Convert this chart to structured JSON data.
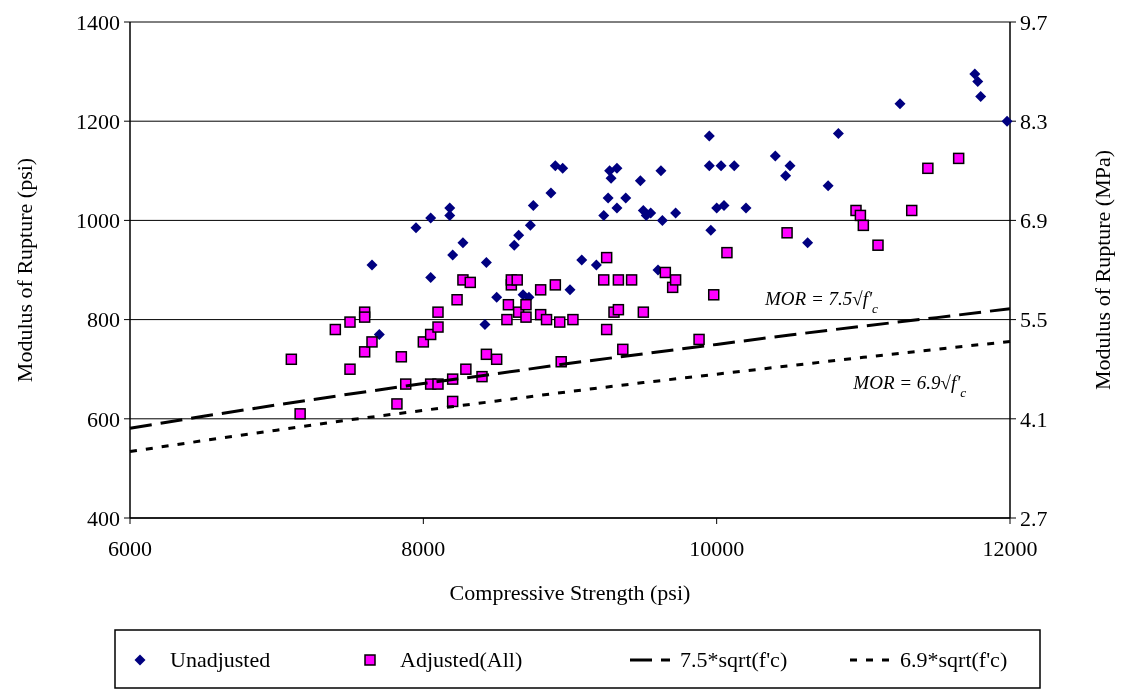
{
  "chart_data": {
    "type": "scatter",
    "xlabel": "Compressive Strength (psi)",
    "ylabel": "Modulus of Rupture (psi)",
    "y2label": "Modulus of Rupture (MPa)",
    "xlim": [
      6000,
      12000
    ],
    "xticks": [
      6000,
      8000,
      10000,
      12000
    ],
    "ylim": [
      400,
      1400
    ],
    "yticks": [
      400,
      600,
      800,
      1000,
      1200,
      1400
    ],
    "y2lim": [
      2.7,
      9.7
    ],
    "y2ticks": [
      2.7,
      4.1,
      5.5,
      6.9,
      8.3,
      9.7
    ],
    "grid": "y",
    "legend": "bottom",
    "annotations": [
      {
        "text": "MOR = 7.5√f'$_{c}$",
        "x": 10500,
        "y": 769
      },
      {
        "text": "MOR = 6.9√f'$_{c}$",
        "x": 11000,
        "y": 724
      }
    ],
    "series": [
      {
        "name": "Unadjusted",
        "marker": "diamond",
        "color": "#000080",
        "x": [
          7650,
          7700,
          7950,
          8050,
          8050,
          8180,
          8180,
          8200,
          8270,
          8420,
          8430,
          8500,
          8620,
          8650,
          8680,
          8720,
          8730,
          8750,
          8870,
          8900,
          8950,
          9000,
          9080,
          9180,
          9230,
          9260,
          9270,
          9280,
          9320,
          9320,
          9380,
          9480,
          9500,
          9520,
          9550,
          9620,
          9630,
          9600,
          9720,
          9950,
          9950,
          9960,
          10000,
          10030,
          10050,
          10120,
          10200,
          10400,
          10470,
          10500,
          10620,
          10760,
          10830,
          11250,
          11760,
          11780,
          11800,
          11980
        ],
        "values": [
          910,
          770,
          985,
          1005,
          885,
          1025,
          1010,
          930,
          955,
          790,
          915,
          845,
          950,
          970,
          850,
          845,
          990,
          1030,
          1055,
          1110,
          1105,
          860,
          920,
          910,
          1010,
          1045,
          1100,
          1085,
          1105,
          1025,
          1045,
          1080,
          1020,
          1010,
          1015,
          1100,
          1000,
          900,
          1015,
          1110,
          1170,
          980,
          1025,
          1110,
          1030,
          1110,
          1025,
          1130,
          1090,
          1110,
          955,
          1070,
          1175,
          1235,
          1295,
          1280,
          1250,
          1200
        ]
      },
      {
        "name": "Adjusted(All)",
        "marker": "square",
        "color": "#ff00ff",
        "x": [
          7100,
          7160,
          7400,
          7500,
          7500,
          7600,
          7600,
          7600,
          7650,
          7820,
          7850,
          7880,
          8000,
          8050,
          8050,
          8100,
          8100,
          8100,
          8200,
          8200,
          8230,
          8270,
          8290,
          8320,
          8400,
          8430,
          8500,
          8570,
          8580,
          8600,
          8600,
          8640,
          8650,
          8700,
          8700,
          8800,
          8800,
          8840,
          8900,
          8930,
          8940,
          9020,
          9230,
          9250,
          9250,
          9300,
          9330,
          9330,
          9360,
          9420,
          9500,
          9650,
          9700,
          9720,
          9880,
          9980,
          10070,
          10480,
          10950,
          10980,
          11000,
          11100,
          11330,
          11440,
          11650
        ],
        "values": [
          720,
          610,
          780,
          795,
          700,
          815,
          805,
          735,
          755,
          630,
          725,
          670,
          755,
          770,
          670,
          785,
          670,
          815,
          680,
          635,
          840,
          880,
          700,
          875,
          685,
          730,
          720,
          800,
          830,
          870,
          880,
          880,
          815,
          830,
          805,
          860,
          810,
          800,
          870,
          795,
          715,
          800,
          880,
          925,
          780,
          815,
          820,
          880,
          740,
          880,
          815,
          895,
          865,
          880,
          760,
          850,
          935,
          975,
          1020,
          1010,
          990,
          950,
          1020,
          1105,
          1125
        ]
      },
      {
        "name": "7.5*sqrt(f'c)",
        "type": "line",
        "marker": "none",
        "line_style": "dashed",
        "color": "#000000",
        "x": [
          6000,
          6500,
          7000,
          7500,
          8000,
          8500,
          9000,
          9500,
          10000,
          10500,
          11000,
          11500,
          12000
        ],
        "values": [
          581,
          605,
          628,
          650,
          671,
          691,
          712,
          731,
          750,
          769,
          787,
          804,
          822
        ]
      },
      {
        "name": "6.9*sqrt(f'c)",
        "type": "line",
        "marker": "none",
        "line_style": "dotted",
        "color": "#000000",
        "x": [
          6000,
          6500,
          7000,
          7500,
          8000,
          8500,
          9000,
          9500,
          10000,
          10500,
          11000,
          11500,
          12000
        ],
        "values": [
          534,
          556,
          577,
          598,
          617,
          636,
          655,
          673,
          690,
          707,
          724,
          740,
          756
        ]
      }
    ]
  }
}
